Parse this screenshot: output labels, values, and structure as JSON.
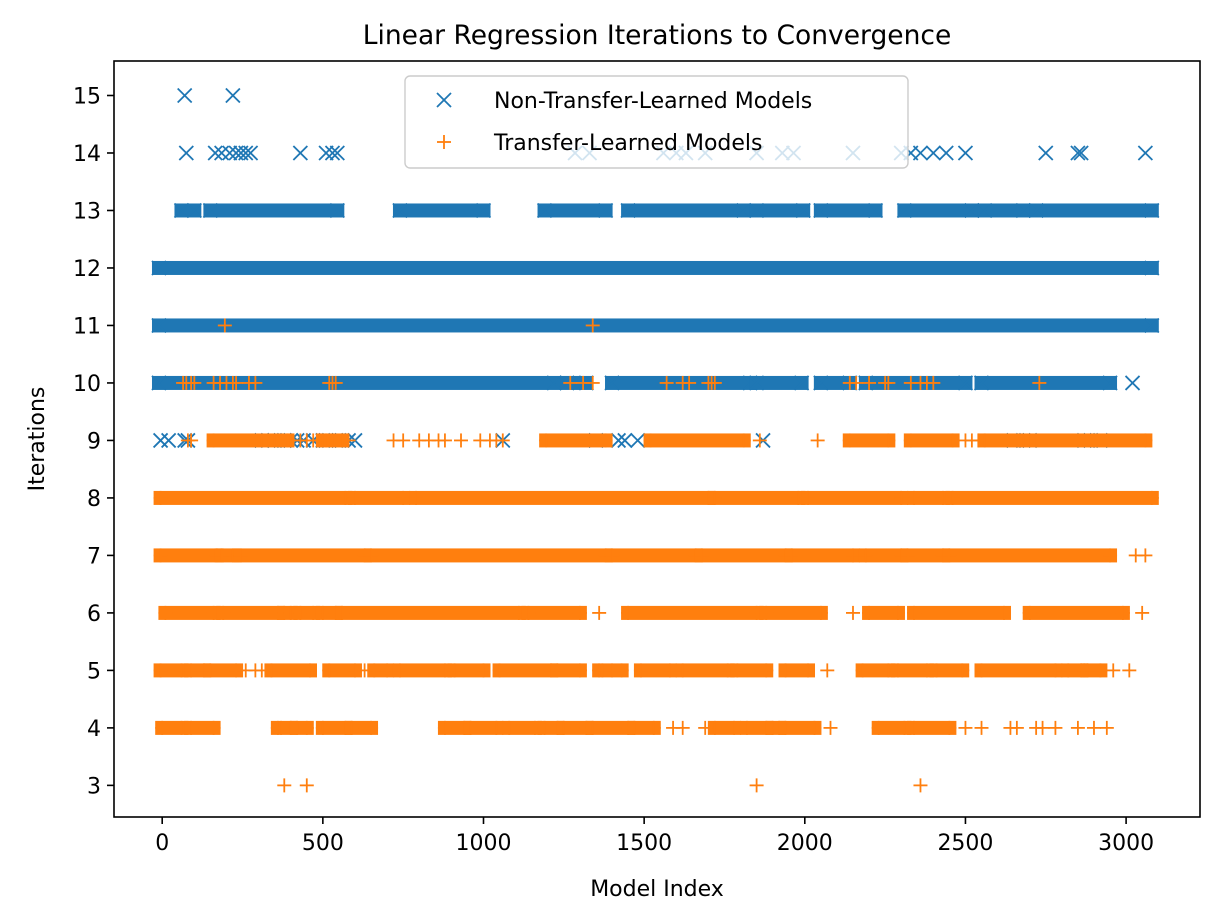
{
  "chart_data": {
    "type": "scatter",
    "title": "Linear Regression Iterations to Convergence",
    "xlabel": "Model Index",
    "ylabel": "Iterations",
    "xlim": [
      -150,
      3230
    ],
    "ylim": [
      2.45,
      15.6
    ],
    "xticks": [
      0,
      500,
      1000,
      1500,
      2000,
      2500,
      3000
    ],
    "yticks": [
      3,
      4,
      5,
      6,
      7,
      8,
      9,
      10,
      11,
      12,
      13,
      14,
      15
    ],
    "grid": false,
    "legend": {
      "position": "top-center"
    },
    "series": [
      {
        "name": "Non-Transfer-Learned Models",
        "marker": "x",
        "color": "#1f77b4",
        "rows": [
          {
            "y": 15,
            "x": [
              70,
              220
            ]
          },
          {
            "y": 14,
            "x": [
              75,
              165,
              185,
              210,
              230,
              245,
              260,
              275,
              430,
              510,
              530,
              545,
              1285,
              1330,
              1560,
              1600,
              1630,
              1690,
              1850,
              1930,
              1965,
              2150,
              2300,
              2330,
              2360,
              2400,
              2440,
              2500,
              2750,
              2850,
              2860,
              3060
            ]
          },
          {
            "y": 13,
            "segments": [
              [
                60,
                100
              ],
              [
                150,
                545
              ],
              [
                740,
                1000
              ],
              [
                1190,
                1380
              ],
              [
                1450,
                1810
              ],
              [
                1850,
                1995
              ],
              [
                2050,
                2220
              ],
              [
                2310,
                2520
              ],
              [
                2560,
                2680
              ],
              [
                2720,
                3080
              ]
            ]
          },
          {
            "y": 12,
            "segments": [
              [
                -10,
                3080
              ]
            ]
          },
          {
            "y": 11,
            "segments": [
              [
                -10,
                3080
              ]
            ]
          },
          {
            "y": 10,
            "segments": [
              [
                -10,
                1220
              ],
              [
                1260,
                1320
              ],
              [
                1400,
                1830
              ],
              [
                1850,
                1990
              ],
              [
                2050,
                2140
              ],
              [
                2190,
                2500
              ],
              [
                2550,
                2950
              ]
            ],
            "x": [
              3020
            ]
          },
          {
            "y": 9,
            "x": [
              -5,
              20,
              70,
              80,
              310,
              330,
              350,
              380,
              400,
              420,
              440,
              470,
              500,
              520,
              550,
              580,
              600,
              1060,
              1350,
              1420,
              1440,
              1480,
              1870,
              2650,
              2680,
              2700,
              2870,
              2890,
              2920
            ]
          }
        ]
      },
      {
        "name": "Transfer-Learned Models",
        "marker": "+",
        "color": "#ff7f0e",
        "rows": [
          {
            "y": 11,
            "x": [
              195,
              1340
            ]
          },
          {
            "y": 10,
            "x": [
              65,
              75,
              90,
              100,
              160,
              180,
              200,
              220,
              230,
              270,
              290,
              520,
              530,
              540,
              1270,
              1310,
              1340,
              1570,
              1620,
              1640,
              1700,
              1710,
              1720,
              2140,
              2160,
              2200,
              2250,
              2260,
              2330,
              2360,
              2380,
              2400,
              2730
            ]
          },
          {
            "y": 9,
            "segments": [
              [
                160,
                310
              ],
              [
                350,
                390
              ],
              [
                500,
                560
              ],
              [
                1195,
                1380
              ],
              [
                1520,
                1810
              ],
              [
                2140,
                2260
              ],
              [
                2330,
                2460
              ],
              [
                2560,
                2680
              ],
              [
                2720,
                3060
              ]
            ],
            "x": [
              80,
              90,
              400,
              430,
              450,
              470,
              490,
              510,
              530,
              560,
              580,
              720,
              750,
              800,
              830,
              860,
              880,
              930,
              990,
              1020,
              1040,
              1060,
              1860,
              2040,
              2500,
              2520,
              2540
            ]
          },
          {
            "y": 8,
            "segments": [
              [
                -5,
                570
              ],
              [
                600,
                750
              ],
              [
                790,
                1700
              ],
              [
                1720,
                1980
              ],
              [
                2010,
                2300
              ],
              [
                2340,
                2430
              ],
              [
                2460,
                3080
              ]
            ]
          },
          {
            "y": 7,
            "segments": [
              [
                -5,
                170
              ],
              [
                185,
                220
              ],
              [
                245,
                630
              ],
              [
                650,
                1380
              ],
              [
                1400,
                1660
              ],
              [
                1680,
                1940
              ],
              [
                1960,
                2150
              ],
              [
                2190,
                2300
              ],
              [
                2320,
                2430
              ],
              [
                2450,
                2950
              ]
            ],
            "x": [
              3030,
              3060
            ]
          },
          {
            "y": 6,
            "segments": [
              [
                10,
                160
              ],
              [
                190,
                360
              ],
              [
                380,
                400
              ],
              [
                430,
                470
              ],
              [
                500,
                540
              ],
              [
                560,
                1110
              ],
              [
                1140,
                1300
              ],
              [
                1450,
                1850
              ],
              [
                1880,
                2050
              ],
              [
                2200,
                2290
              ],
              [
                2340,
                2620
              ],
              [
                2700,
                2990
              ]
            ],
            "x": [
              1360,
              2150,
              3050
            ]
          },
          {
            "y": 5,
            "segments": [
              [
                -5,
                60
              ],
              [
                90,
                130
              ],
              [
                150,
                230
              ],
              [
                340,
                460
              ],
              [
                520,
                600
              ],
              [
                660,
                700
              ],
              [
                740,
                880
              ],
              [
                910,
                1000
              ],
              [
                1050,
                1210
              ],
              [
                1230,
                1300
              ],
              [
                1360,
                1430
              ],
              [
                1490,
                1580
              ],
              [
                1620,
                1760
              ],
              [
                1790,
                1880
              ],
              [
                1940,
                2010
              ],
              [
                2180,
                2260
              ],
              [
                2290,
                2380
              ],
              [
                2410,
                2490
              ],
              [
                2550,
                2780
              ],
              [
                2820,
                2860
              ],
              [
                2880,
                2920
              ]
            ],
            "x": [
              260,
              290,
              310,
              630,
              1370,
              1400,
              2070,
              2870,
              2960,
              3010
            ]
          },
          {
            "y": 4,
            "segments": [
              [
                0,
                60
              ],
              [
                90,
                160
              ],
              [
                360,
                400
              ],
              [
                420,
                450
              ],
              [
                500,
                570
              ],
              [
                590,
                650
              ],
              [
                880,
                940
              ],
              [
                960,
                1040
              ],
              [
                1080,
                1160
              ],
              [
                1190,
                1230
              ],
              [
                1250,
                1320
              ],
              [
                1340,
                1450
              ],
              [
                1470,
                1530
              ],
              [
                1720,
                1780
              ],
              [
                1820,
                1880
              ],
              [
                1900,
                1920
              ],
              [
                1940,
                2030
              ],
              [
                2230,
                2310
              ],
              [
                2340,
                2450
              ]
            ],
            "x": [
              370,
              1590,
              1620,
              1690,
              2080,
              2500,
              2550,
              2640,
              2660,
              2720,
              2740,
              2780,
              2850,
              2900,
              2940
            ]
          },
          {
            "y": 3,
            "x": [
              380,
              450,
              1850,
              2360
            ]
          }
        ]
      }
    ]
  }
}
